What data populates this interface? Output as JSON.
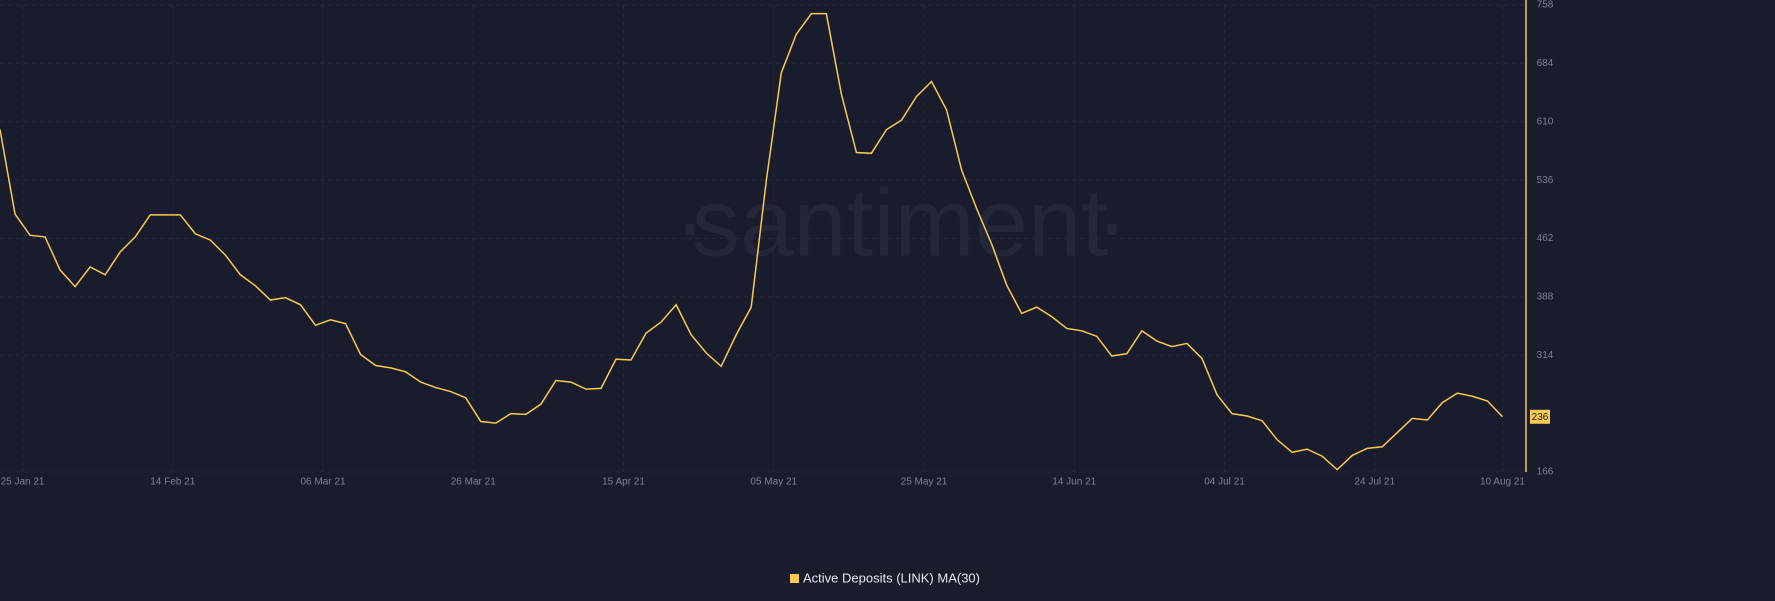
{
  "chart_data": {
    "type": "line",
    "watermark": "santiment",
    "x": [
      "2021-01-22",
      "2021-01-24",
      "2021-01-26",
      "2021-01-28",
      "2021-01-30",
      "2021-02-01",
      "2021-02-03",
      "2021-02-05",
      "2021-02-07",
      "2021-02-09",
      "2021-02-11",
      "2021-02-13",
      "2021-02-15",
      "2021-02-17",
      "2021-02-19",
      "2021-02-21",
      "2021-02-23",
      "2021-02-25",
      "2021-02-27",
      "2021-03-01",
      "2021-03-03",
      "2021-03-05",
      "2021-03-07",
      "2021-03-09",
      "2021-03-11",
      "2021-03-13",
      "2021-03-15",
      "2021-03-17",
      "2021-03-19",
      "2021-03-21",
      "2021-03-23",
      "2021-03-25",
      "2021-03-27",
      "2021-03-29",
      "2021-03-31",
      "2021-04-02",
      "2021-04-04",
      "2021-04-06",
      "2021-04-08",
      "2021-04-10",
      "2021-04-12",
      "2021-04-14",
      "2021-04-16",
      "2021-04-18",
      "2021-04-20",
      "2021-04-22",
      "2021-04-24",
      "2021-04-26",
      "2021-04-28",
      "2021-04-30",
      "2021-05-02",
      "2021-05-04",
      "2021-05-06",
      "2021-05-08",
      "2021-05-10",
      "2021-05-12",
      "2021-05-14",
      "2021-05-16",
      "2021-05-18",
      "2021-05-20",
      "2021-05-22",
      "2021-05-24",
      "2021-05-26",
      "2021-05-28",
      "2021-05-30",
      "2021-06-01",
      "2021-06-03",
      "2021-06-05",
      "2021-06-07",
      "2021-06-09",
      "2021-06-11",
      "2021-06-13",
      "2021-06-15",
      "2021-06-17",
      "2021-06-19",
      "2021-06-21",
      "2021-06-23",
      "2021-06-25",
      "2021-06-27",
      "2021-06-29",
      "2021-07-01",
      "2021-07-03",
      "2021-07-05",
      "2021-07-07",
      "2021-07-09",
      "2021-07-11",
      "2021-07-13",
      "2021-07-15",
      "2021-07-17",
      "2021-07-19",
      "2021-07-21",
      "2021-07-23",
      "2021-07-25",
      "2021-07-27",
      "2021-07-29",
      "2021-07-31",
      "2021-08-02",
      "2021-08-04",
      "2021-08-06",
      "2021-08-08",
      "2021-08-10"
    ],
    "series": [
      {
        "name": "Active Deposits (LINK) MA(30)",
        "color": "#f7cb4d",
        "values": [
          600,
          493,
          466,
          464,
          422,
          401,
          426,
          416,
          445,
          464,
          492,
          492,
          492,
          468,
          460,
          441,
          416,
          402,
          384,
          387,
          378,
          352,
          359,
          354,
          315,
          301,
          298,
          293,
          280,
          273,
          268,
          260,
          230,
          228,
          240,
          239,
          252,
          282,
          280,
          271,
          272,
          309,
          308,
          342,
          356,
          378,
          340,
          317,
          300,
          340,
          375,
          535,
          672,
          721,
          747,
          747,
          645,
          571,
          570,
          600,
          612,
          642,
          661,
          625,
          549,
          500,
          455,
          403,
          367,
          375,
          363,
          348,
          345,
          338,
          313,
          316,
          345,
          332,
          325,
          329,
          310,
          264,
          240,
          237,
          231,
          207,
          191,
          195,
          186,
          169,
          187,
          196,
          198,
          216,
          234,
          232,
          254,
          266,
          262,
          256,
          236
        ]
      }
    ],
    "xlim": [
      "2021-01-22",
      "2021-08-13"
    ],
    "xticks": [
      {
        "value": "2021-01-25",
        "label": "25 Jan 21"
      },
      {
        "value": "2021-02-14",
        "label": "14 Feb 21"
      },
      {
        "value": "2021-03-06",
        "label": "06 Mar 21"
      },
      {
        "value": "2021-03-26",
        "label": "26 Mar 21"
      },
      {
        "value": "2021-04-15",
        "label": "15 Apr 21"
      },
      {
        "value": "2021-05-05",
        "label": "05 May 21"
      },
      {
        "value": "2021-05-25",
        "label": "25 May 21"
      },
      {
        "value": "2021-06-14",
        "label": "14 Jun 21"
      },
      {
        "value": "2021-07-04",
        "label": "04 Jul 21"
      },
      {
        "value": "2021-07-24",
        "label": "24 Jul 21"
      },
      {
        "value": "2021-08-10",
        "label": "10 Aug 21"
      }
    ],
    "ylim": [
      166,
      758
    ],
    "yticks": [
      166,
      314,
      388,
      462,
      536,
      610,
      684,
      758
    ],
    "grid": true
  }
}
